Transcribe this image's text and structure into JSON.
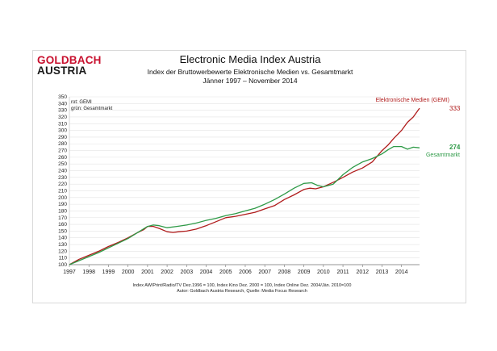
{
  "logo": {
    "line1": "GOLDBACH",
    "line2": "AUSTRIA"
  },
  "header": {
    "title": "Electronic Media Index Austria",
    "subtitle1": "Index der Bruttowerbewerte Elektronische Medien vs. Gesamtmarkt",
    "subtitle2": "Jänner 1997 –  November 2014"
  },
  "footnotes": {
    "line1": "Index AW/Print/Radio/TV Dez.1996 = 100, Index Kino Dez. 2000 = 100, Index Online Dez. 2004/Jän. 2010=100",
    "line2": "Autor: Goldbach Austria Research, Quelle: Media Focus Research"
  },
  "chart_data": {
    "type": "line",
    "title": "Electronic Media Index Austria",
    "legend_text": [
      "rot: GEMI",
      "grün: Gesamtmarkt"
    ],
    "legend_position": "top-left",
    "grid": true,
    "ylim": [
      100,
      350
    ],
    "ytick_step": 10,
    "xlim": [
      1997.0,
      2014.92
    ],
    "xticks": [
      1997,
      1998,
      1999,
      2000,
      2001,
      2002,
      2003,
      2004,
      2005,
      2006,
      2007,
      2008,
      2009,
      2010,
      2011,
      2012,
      2013,
      2014
    ],
    "series": [
      {
        "name": "Elektronische Medien (GEMI)",
        "color": "#b01c1c",
        "end_label": "333",
        "x": [
          1997.0,
          1997.5,
          1998.0,
          1998.5,
          1999.0,
          1999.5,
          2000.0,
          2000.5,
          2000.8,
          2001.0,
          2001.3,
          2001.6,
          2002.0,
          2002.3,
          2002.6,
          2003.0,
          2003.5,
          2004.0,
          2004.5,
          2005.0,
          2005.5,
          2006.0,
          2006.5,
          2007.0,
          2007.5,
          2008.0,
          2008.5,
          2009.0,
          2009.3,
          2009.6,
          2010.0,
          2010.3,
          2010.6,
          2011.0,
          2011.5,
          2012.0,
          2012.5,
          2013.0,
          2013.3,
          2013.6,
          2014.0,
          2014.3,
          2014.6,
          2014.92
        ],
        "values": [
          100,
          108,
          114,
          120,
          127,
          133,
          140,
          148,
          152,
          157,
          157,
          154,
          149,
          148,
          149,
          150,
          153,
          158,
          164,
          170,
          172,
          175,
          178,
          183,
          188,
          197,
          204,
          212,
          214,
          213,
          216,
          220,
          224,
          230,
          238,
          244,
          253,
          270,
          278,
          288,
          300,
          312,
          320,
          333
        ]
      },
      {
        "name": "Gesamtmarkt",
        "color": "#2e9a47",
        "end_label": "274",
        "x": [
          1997.0,
          1997.5,
          1998.0,
          1998.5,
          1999.0,
          1999.5,
          2000.0,
          2000.5,
          2001.0,
          2001.3,
          2001.6,
          2002.0,
          2002.5,
          2003.0,
          2003.5,
          2004.0,
          2004.5,
          2005.0,
          2005.5,
          2006.0,
          2006.5,
          2007.0,
          2007.5,
          2008.0,
          2008.5,
          2009.0,
          2009.4,
          2009.7,
          2010.0,
          2010.5,
          2011.0,
          2011.5,
          2012.0,
          2012.5,
          2013.0,
          2013.3,
          2013.6,
          2014.0,
          2014.3,
          2014.6,
          2014.92
        ],
        "values": [
          100,
          106,
          112,
          118,
          125,
          132,
          139,
          148,
          157,
          159,
          158,
          155,
          157,
          159,
          162,
          166,
          169,
          173,
          176,
          180,
          184,
          190,
          197,
          205,
          214,
          221,
          222,
          218,
          216,
          220,
          234,
          245,
          253,
          258,
          265,
          271,
          276,
          276,
          272,
          275,
          274
        ]
      }
    ],
    "series_labels": {
      "gemi": "Elektronische Medien (GEMI)",
      "gesamt": "Gesamtmarkt"
    }
  }
}
